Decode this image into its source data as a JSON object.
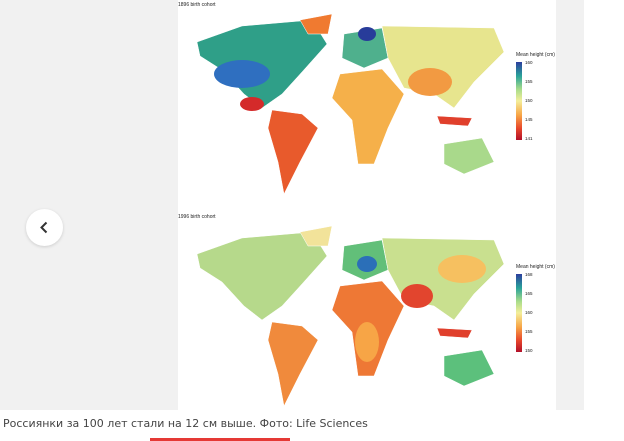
{
  "gallery": {
    "panels": [
      {
        "title": "1896 birth cohort",
        "legend": {
          "title": "Mean height (cm)",
          "ticks": [
            "160",
            "155",
            "150",
            "145",
            "141"
          ]
        }
      },
      {
        "title": "1996 birth cohort",
        "legend": {
          "title": "Mean height (cm)",
          "ticks": [
            "168",
            "165",
            "160",
            "155",
            "150"
          ]
        }
      }
    ]
  },
  "caption": "Россиянки за 100 лет стали на 12 см выше. Фото: Life Sciences"
}
